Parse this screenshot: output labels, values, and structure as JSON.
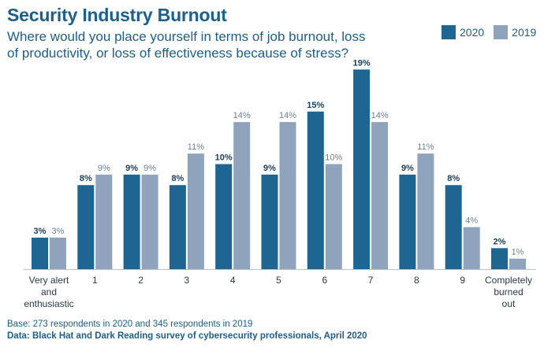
{
  "chart_data": {
    "type": "bar",
    "title": "Security Industry Burnout",
    "subtitle": "Where would you place yourself in terms of job burnout, loss of productivity, or loss of effectiveness because of stress?",
    "categories": [
      [
        "Very alert",
        "and",
        "enthusiastic"
      ],
      [
        "1"
      ],
      [
        "2"
      ],
      [
        "3"
      ],
      [
        "4"
      ],
      [
        "5"
      ],
      [
        "6"
      ],
      [
        "7"
      ],
      [
        "8"
      ],
      [
        "9"
      ],
      [
        "Completely",
        "burned",
        "out"
      ]
    ],
    "series": [
      {
        "name": "2020",
        "color": "#1f6592",
        "values": [
          3,
          8,
          9,
          8,
          10,
          9,
          15,
          19,
          9,
          8,
          2
        ]
      },
      {
        "name": "2019",
        "color": "#8fa3bd",
        "values": [
          3,
          9,
          9,
          11,
          14,
          14,
          10,
          14,
          11,
          4,
          1
        ]
      }
    ],
    "value_suffix": "%",
    "legend_position": "top-right",
    "grid": false
  },
  "footnote": "Base: 273 respondents in 2020 and 345 respondents in 2019",
  "source": "Data: Black Hat and Dark Reading survey of cybersecurity professionals, April 2020"
}
